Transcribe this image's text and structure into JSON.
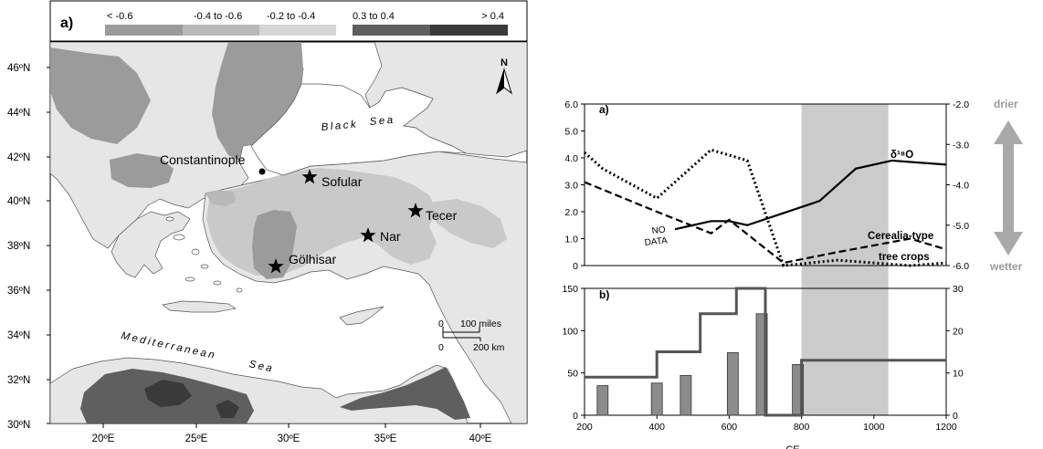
{
  "map": {
    "panel_label": "a)",
    "legend": [
      {
        "label": "< -0.6",
        "color": "#9b9b9b"
      },
      {
        "label": "-0.4 to -0.6",
        "color": "#b9b9b9"
      },
      {
        "label": "-0.2 to -0.4",
        "color": "#d6d6d6"
      },
      {
        "label": "0.3 to 0.4",
        "color": "#5f5f5f"
      },
      {
        "label": "> 0.4",
        "color": "#3a3a3a"
      }
    ],
    "lat_labels": [
      "46ºN",
      "44ºN",
      "42ºN",
      "40ºN",
      "38ºN",
      "36ºN",
      "34ºN",
      "32ºN",
      "30ºN"
    ],
    "lon_labels": [
      "20ºE",
      "25ºE",
      "30ºE",
      "35ºE",
      "40ºE"
    ],
    "north": "N",
    "seas": {
      "black_1": "Black",
      "black_2": "Sea",
      "med_1": "Mediterranean",
      "med_2": "Sea"
    },
    "places": {
      "constantinople": "Constantinople",
      "sofular": "Sofular",
      "tecer": "Tecer",
      "nar": "Nar",
      "golhisar": "Gölhisar"
    },
    "scale": {
      "miles_zero": "0",
      "miles_value": "100 miles",
      "km_zero": "0",
      "km_value": "200 km"
    }
  },
  "chart_data": [
    {
      "type": "line",
      "panel_label": "a)",
      "x": [
        200,
        250,
        400,
        550,
        650,
        750,
        850,
        1000,
        1200
      ],
      "x_range": [
        200,
        1200
      ],
      "ylim_left": [
        0,
        6
      ],
      "ylim_right": [
        -6,
        -2
      ],
      "left_ticks": [
        "6.0",
        "5.0",
        "4.0",
        "3.0",
        "2.0",
        "1.0",
        "0"
      ],
      "right_ticks": [
        "-2.0",
        "-3.0",
        "-4.0",
        "-5.0",
        "-6.0"
      ],
      "shaded_range": [
        800,
        1040
      ],
      "series": [
        {
          "name": "δ¹⁸O",
          "style": "solid",
          "x": [
            450,
            550,
            600,
            650,
            850,
            950,
            1050,
            1200
          ],
          "values": [
            -5.1,
            -4.9,
            -4.9,
            -5.0,
            -4.4,
            -3.6,
            -3.4,
            -3.5
          ]
        },
        {
          "name": "Cerealia-type",
          "style": "dashed",
          "x": [
            200,
            400,
            550,
            600,
            750,
            900,
            1100,
            1200
          ],
          "values": [
            3.1,
            2.0,
            1.2,
            1.7,
            0.1,
            0.5,
            1.0,
            0.6
          ]
        },
        {
          "name": "tree crops",
          "style": "dotted",
          "x": [
            200,
            250,
            400,
            550,
            650,
            750,
            900,
            1100,
            1200
          ],
          "values": [
            4.2,
            3.6,
            2.5,
            4.3,
            3.9,
            0.0,
            0.2,
            0.0,
            0.1
          ]
        }
      ],
      "annotations": {
        "no_data_1": "NO",
        "no_data_2": "DATA",
        "drier": "drier",
        "wetter": "wetter"
      }
    },
    {
      "type": "bar",
      "panel_label": "b)",
      "x_ticks": [
        "200",
        "400",
        "600",
        "800",
        "1000",
        "1200"
      ],
      "ylim_left": [
        0,
        150
      ],
      "ylim_right": [
        0,
        30
      ],
      "left_ticks": [
        "150",
        "100",
        "50",
        "0"
      ],
      "right_ticks": [
        "30",
        "20",
        "10",
        "0"
      ],
      "xlabel": "CE",
      "bars": {
        "x": [
          250,
          400,
          480,
          610,
          690,
          790
        ],
        "values": [
          35,
          38,
          47,
          74,
          120,
          60
        ]
      },
      "step": {
        "edges": [
          200,
          240,
          400,
          450,
          520,
          620,
          700,
          800,
          1080,
          1200
        ],
        "values": [
          0,
          9,
          9,
          15,
          15,
          24,
          30,
          0,
          13,
          13
        ]
      }
    }
  ]
}
